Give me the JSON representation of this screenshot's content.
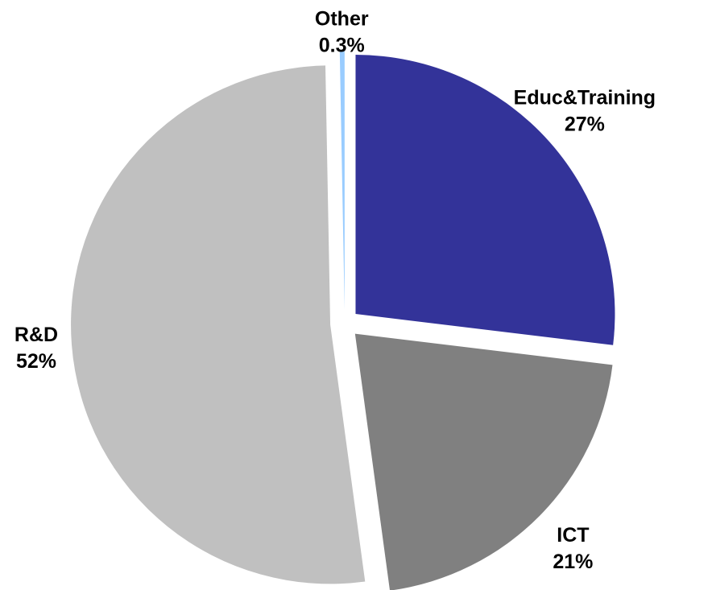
{
  "chart_data": {
    "type": "pie",
    "categories": [
      "Educ&Training",
      "ICT",
      "R&D",
      "Other"
    ],
    "values": [
      27,
      21,
      52,
      0.3
    ],
    "value_labels": [
      "27%",
      "21%",
      "52%",
      "0.3%"
    ],
    "colors": [
      "#333399",
      "#808080",
      "#c0c0c0",
      "#99ccff"
    ]
  }
}
